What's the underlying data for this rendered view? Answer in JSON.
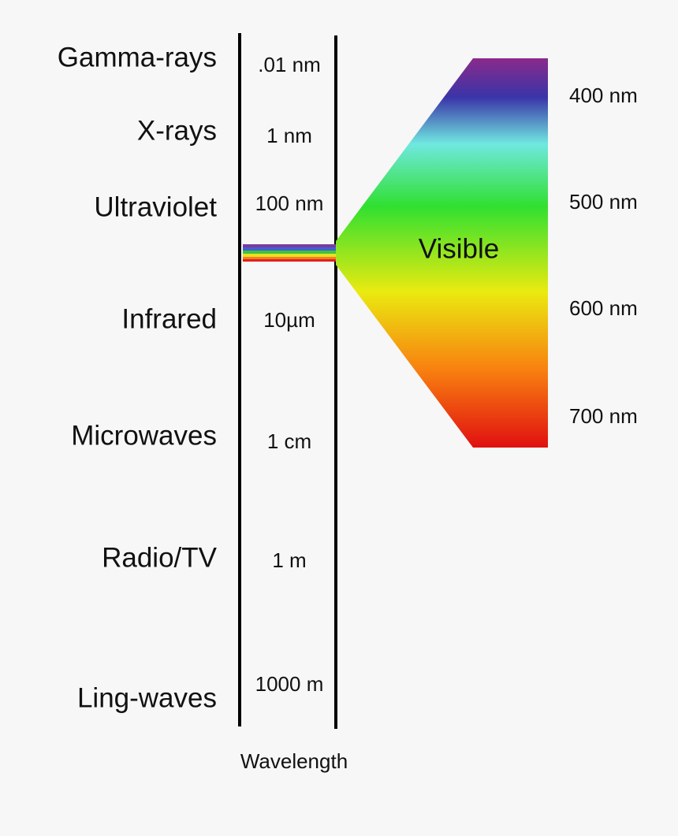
{
  "bands": [
    {
      "name": "Gamma-rays",
      "wavelength": ".01 nm"
    },
    {
      "name": "X-rays",
      "wavelength": "1 nm"
    },
    {
      "name": "Ultraviolet",
      "wavelength": "100 nm"
    },
    {
      "name": "Infrared",
      "wavelength": "10µm"
    },
    {
      "name": "Microwaves",
      "wavelength": "1 cm"
    },
    {
      "name": "Radio/TV",
      "wavelength": "1 m"
    },
    {
      "name": "Ling-waves",
      "wavelength": "1000 m"
    }
  ],
  "visible": {
    "label": "Visible",
    "wavelengths": [
      "400 nm",
      "500 nm",
      "600 nm",
      "700 nm"
    ]
  },
  "axis_label": "Wavelength"
}
